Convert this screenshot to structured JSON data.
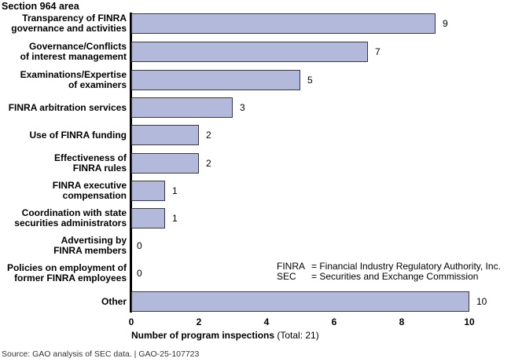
{
  "chart_data": {
    "type": "bar",
    "orientation": "horizontal",
    "title": "Section 964 area",
    "xlabel_bold": "Number of program inspections",
    "xlabel_rest": "(Total: 21)",
    "ylabel": "Section 964 area",
    "xlim": [
      0,
      10
    ],
    "xticks": [
      "0",
      "2",
      "4",
      "6",
      "8",
      "10"
    ],
    "grid": false,
    "categories": [
      [
        "Transparency of FINRA",
        "governance and activities"
      ],
      [
        "Governance/Conflicts",
        "of interest management"
      ],
      [
        "Examinations/Expertise",
        "of examiners"
      ],
      [
        "FINRA arbitration services"
      ],
      [
        "Use of FINRA funding"
      ],
      [
        "Effectiveness of",
        "FINRA rules"
      ],
      [
        "FINRA executive",
        "compensation"
      ],
      [
        "Coordination with state",
        "securities administrators"
      ],
      [
        "Advertising by",
        "FINRA members"
      ],
      [
        "Policies on employment of",
        "former FINRA employees"
      ],
      [
        "Other"
      ]
    ],
    "values": [
      9,
      7,
      5,
      3,
      2,
      2,
      1,
      1,
      0,
      0,
      10
    ],
    "bar_color": "#b3b9da"
  },
  "legend": {
    "items": [
      {
        "abbr": "FINRA",
        "definition": "= Financial Industry Regulatory Authority, Inc."
      },
      {
        "abbr": "SEC",
        "definition": "= Securities and Exchange Commission"
      }
    ]
  },
  "source": "Source: GAO analysis of SEC data.  |  GAO-25-107723"
}
